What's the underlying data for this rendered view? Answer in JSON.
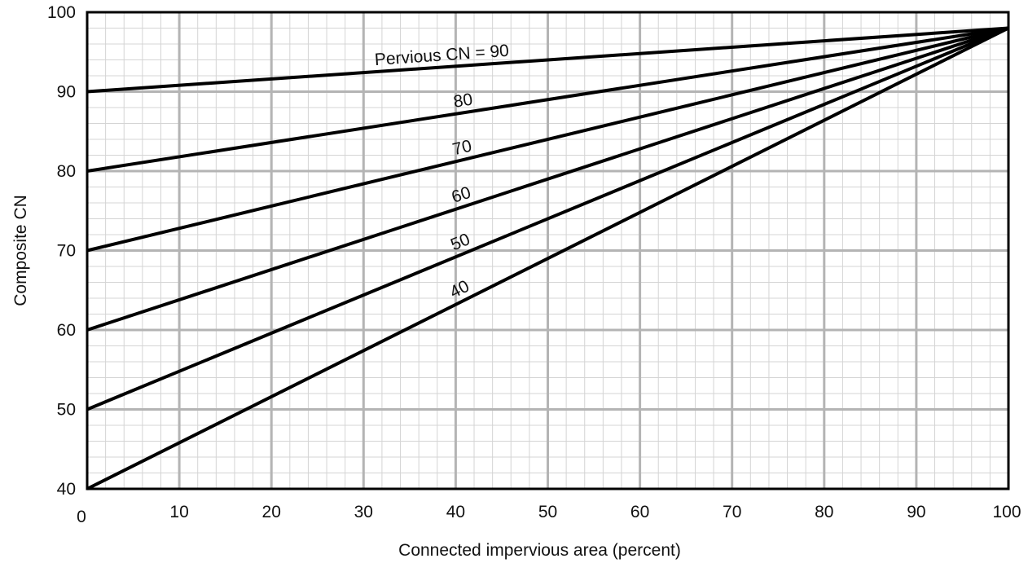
{
  "chart_data": {
    "type": "line",
    "title": "",
    "xlabel": "Connected impervious area (percent)",
    "ylabel": "Composite CN",
    "xlim": [
      0,
      100
    ],
    "ylim": [
      40,
      100
    ],
    "x_ticks": [
      "0",
      "10",
      "20",
      "30",
      "40",
      "50",
      "60",
      "70",
      "80",
      "90",
      "100"
    ],
    "y_ticks": [
      "40",
      "50",
      "60",
      "70",
      "80",
      "90",
      "100"
    ],
    "grid": true,
    "series_label_prefix": "Pervious CN = ",
    "series": [
      {
        "name": "90",
        "x": [
          0,
          100
        ],
        "y": [
          90,
          98
        ]
      },
      {
        "name": "80",
        "x": [
          0,
          100
        ],
        "y": [
          80,
          98
        ]
      },
      {
        "name": "70",
        "x": [
          0,
          100
        ],
        "y": [
          70,
          98
        ]
      },
      {
        "name": "60",
        "x": [
          0,
          100
        ],
        "y": [
          60,
          98
        ]
      },
      {
        "name": "50",
        "x": [
          0,
          100
        ],
        "y": [
          50,
          98
        ]
      },
      {
        "name": "40",
        "x": [
          0,
          100
        ],
        "y": [
          40,
          98
        ]
      }
    ],
    "colors": {
      "grid_major": "#b4b4b4",
      "grid_minor": "#d4d4d4",
      "line": "#000000",
      "frame": "#000000"
    }
  }
}
